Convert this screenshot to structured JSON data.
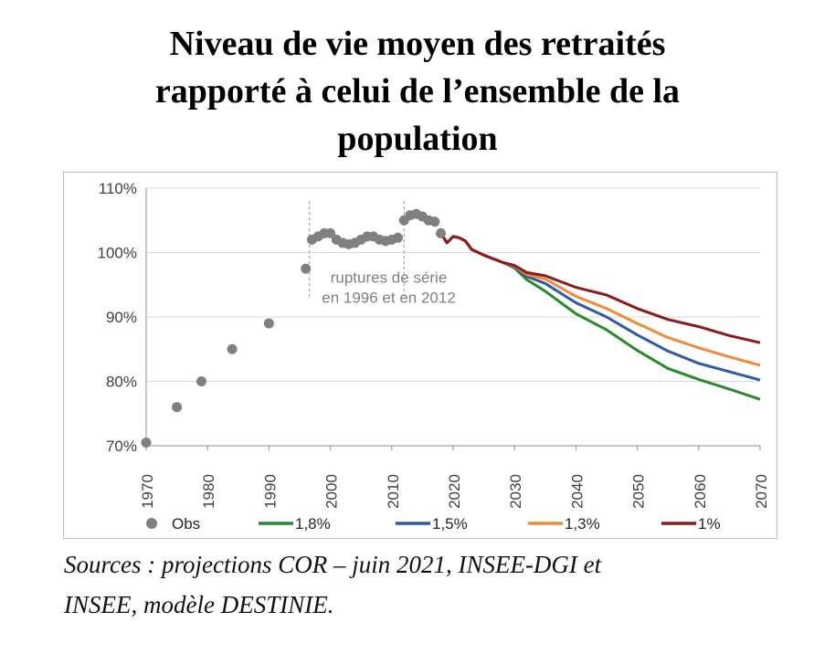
{
  "title_lines": [
    "Niveau de vie moyen des retraités",
    "rapporté à celui de l’ensemble de la",
    "population"
  ],
  "source_lines": [
    "Sources : projections COR – juin 2021, INSEE-DGI et",
    "INSEE, modèle DESTINIE."
  ],
  "chart_data": {
    "type": "line",
    "title": "Niveau de vie moyen des retraités rapporté à celui de l’ensemble de la population",
    "xlim": [
      1970,
      2070
    ],
    "ylim": [
      70,
      110
    ],
    "x_ticks": [
      1970,
      1980,
      1990,
      2000,
      2010,
      2020,
      2030,
      2040,
      2050,
      2060,
      2070
    ],
    "x_tick_labels": [
      "1970",
      "1980",
      "1990",
      "2000",
      "2010",
      "2020",
      "2030",
      "2040",
      "2050",
      "2060",
      "2070"
    ],
    "y_ticks": [
      70,
      80,
      90,
      100,
      110
    ],
    "y_tick_labels": [
      "70%",
      "80%",
      "90%",
      "100%",
      "110%"
    ],
    "grid": "horizontal",
    "legend_position": "bottom",
    "annotation": {
      "lines": [
        "ruptures de série",
        "en 1996 et en 2012"
      ],
      "x": 2011,
      "y": [
        95.3,
        92.2
      ]
    },
    "series_breaks": [
      1996,
      2012
    ],
    "series": [
      {
        "name": "Obs",
        "kind": "points",
        "color": "#808080",
        "points": [
          [
            1970,
            70.5
          ],
          [
            1975,
            76
          ],
          [
            1979,
            80
          ],
          [
            1984,
            85
          ],
          [
            1990,
            89
          ],
          [
            1996,
            97.5
          ],
          [
            1997,
            102
          ],
          [
            1998,
            102.5
          ],
          [
            1999,
            103
          ],
          [
            2000,
            103
          ],
          [
            2001,
            102
          ],
          [
            2002,
            101.5
          ],
          [
            2003,
            101.3
          ],
          [
            2004,
            101.5
          ],
          [
            2005,
            102
          ],
          [
            2006,
            102.5
          ],
          [
            2007,
            102.5
          ],
          [
            2008,
            102
          ],
          [
            2009,
            101.8
          ],
          [
            2010,
            102
          ],
          [
            2011,
            102.3
          ],
          [
            2012,
            105
          ],
          [
            2013,
            105.8
          ],
          [
            2014,
            106
          ],
          [
            2015,
            105.6
          ],
          [
            2016,
            105
          ],
          [
            2017,
            104.8
          ],
          [
            2018,
            103
          ]
        ]
      },
      {
        "name": "1,8%",
        "kind": "line",
        "color": "#2a8a2a",
        "points": [
          [
            2018,
            103
          ],
          [
            2019,
            101.5
          ],
          [
            2020,
            102.5
          ],
          [
            2021,
            102.3
          ],
          [
            2022,
            101.8
          ],
          [
            2023,
            100.5
          ],
          [
            2025,
            99.6
          ],
          [
            2028,
            98.5
          ],
          [
            2030,
            97.6
          ],
          [
            2032,
            95.8
          ],
          [
            2035,
            94
          ],
          [
            2040,
            90.5
          ],
          [
            2045,
            88
          ],
          [
            2050,
            84.8
          ],
          [
            2055,
            82
          ],
          [
            2060,
            80.3
          ],
          [
            2065,
            78.8
          ],
          [
            2070,
            77.2
          ]
        ]
      },
      {
        "name": "1,5%",
        "kind": "line",
        "color": "#2e5aa8",
        "points": [
          [
            2018,
            103
          ],
          [
            2019,
            101.5
          ],
          [
            2020,
            102.5
          ],
          [
            2021,
            102.3
          ],
          [
            2022,
            101.8
          ],
          [
            2023,
            100.5
          ],
          [
            2025,
            99.6
          ],
          [
            2028,
            98.5
          ],
          [
            2030,
            97.8
          ],
          [
            2032,
            96.3
          ],
          [
            2035,
            95.2
          ],
          [
            2040,
            92.2
          ],
          [
            2045,
            90
          ],
          [
            2050,
            87.2
          ],
          [
            2055,
            84.7
          ],
          [
            2060,
            82.8
          ],
          [
            2065,
            81.5
          ],
          [
            2070,
            80.2
          ]
        ]
      },
      {
        "name": "1,3%",
        "kind": "line",
        "color": "#f08a3c",
        "points": [
          [
            2018,
            103
          ],
          [
            2019,
            101.5
          ],
          [
            2020,
            102.5
          ],
          [
            2021,
            102.3
          ],
          [
            2022,
            101.8
          ],
          [
            2023,
            100.5
          ],
          [
            2025,
            99.6
          ],
          [
            2028,
            98.5
          ],
          [
            2030,
            97.9
          ],
          [
            2032,
            96.6
          ],
          [
            2035,
            95.9
          ],
          [
            2040,
            93.2
          ],
          [
            2045,
            91.3
          ],
          [
            2050,
            89
          ],
          [
            2055,
            86.8
          ],
          [
            2060,
            85.2
          ],
          [
            2065,
            83.8
          ],
          [
            2070,
            82.5
          ]
        ]
      },
      {
        "name": "1%",
        "kind": "line",
        "color": "#8b1a1a",
        "points": [
          [
            2018,
            103
          ],
          [
            2019,
            101.5
          ],
          [
            2020,
            102.5
          ],
          [
            2021,
            102.3
          ],
          [
            2022,
            101.8
          ],
          [
            2023,
            100.5
          ],
          [
            2025,
            99.6
          ],
          [
            2028,
            98.5
          ],
          [
            2030,
            98
          ],
          [
            2032,
            96.9
          ],
          [
            2035,
            96.4
          ],
          [
            2040,
            94.6
          ],
          [
            2045,
            93.4
          ],
          [
            2050,
            91.3
          ],
          [
            2055,
            89.6
          ],
          [
            2060,
            88.5
          ],
          [
            2065,
            87.1
          ],
          [
            2070,
            86
          ]
        ]
      }
    ]
  }
}
